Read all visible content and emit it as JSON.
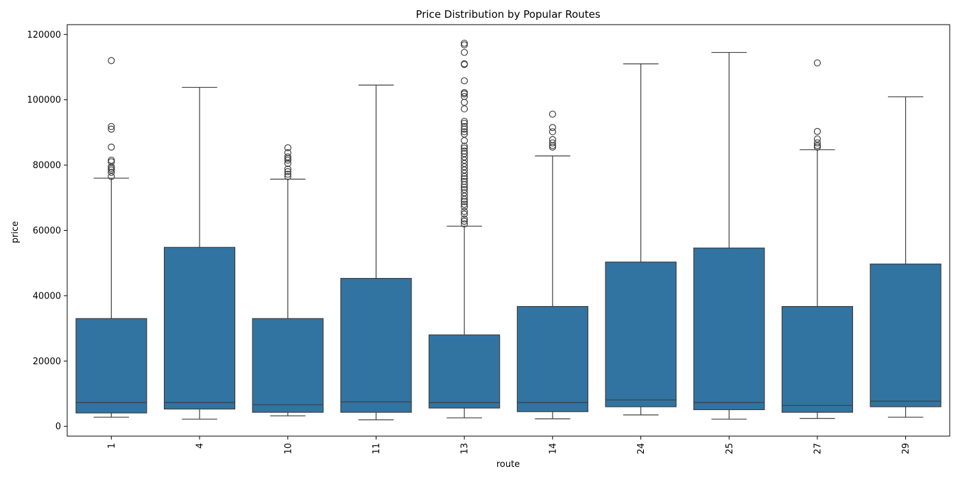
{
  "chart_data": {
    "type": "box",
    "title": "Price Distribution by Popular Routes",
    "xlabel": "route",
    "ylabel": "price",
    "ylim": [
      -3000,
      123000
    ],
    "yticks": [
      0,
      20000,
      40000,
      60000,
      80000,
      100000,
      120000
    ],
    "ytick_labels": [
      "0",
      "20000",
      "40000",
      "60000",
      "80000",
      "100000",
      "120000"
    ],
    "x_tick_rotation": "vertical",
    "grid": false,
    "legend": "none",
    "colors": {
      "box_fill": "#3274a1",
      "line": "#3d3d3d",
      "axis": "#000000"
    },
    "categories": [
      "1",
      "4",
      "10",
      "11",
      "13",
      "14",
      "24",
      "25",
      "27",
      "29"
    ],
    "boxes": [
      {
        "category": "1",
        "whisker_low": 2800,
        "q1": 4100,
        "median": 7300,
        "q3": 33000,
        "whisker_high": 76000,
        "outliers": [
          76500,
          77800,
          78500,
          79000,
          79500,
          81000,
          81500,
          85500,
          91000,
          91800,
          112000
        ]
      },
      {
        "category": "4",
        "whisker_low": 2200,
        "q1": 5300,
        "median": 7300,
        "q3": 54800,
        "whisker_high": 103800,
        "outliers": []
      },
      {
        "category": "10",
        "whisker_low": 3200,
        "q1": 4300,
        "median": 6600,
        "q3": 33000,
        "whisker_high": 75700,
        "outliers": [
          76500,
          77200,
          78000,
          78800,
          80500,
          81500,
          82000,
          82500,
          83800,
          85300
        ]
      },
      {
        "category": "11",
        "whisker_low": 2000,
        "q1": 4300,
        "median": 7500,
        "q3": 45300,
        "whisker_high": 104500,
        "outliers": []
      },
      {
        "category": "13",
        "whisker_low": 2600,
        "q1": 5600,
        "median": 7300,
        "q3": 28000,
        "whisker_high": 61300,
        "outliers": [
          62000,
          62800,
          63500,
          65000,
          65800,
          67200,
          68000,
          68800,
          69500,
          70500,
          71500,
          72500,
          73200,
          74000,
          75000,
          75800,
          76500,
          77500,
          78500,
          79500,
          80500,
          81500,
          82500,
          83500,
          84300,
          85200,
          85800,
          87500,
          89500,
          90200,
          91000,
          91800,
          92800,
          93400,
          97200,
          99200,
          101000,
          101800,
          102200,
          105800,
          110800,
          111000,
          114500,
          116800,
          117300
        ]
      },
      {
        "category": "14",
        "whisker_low": 2300,
        "q1": 4500,
        "median": 7300,
        "q3": 36700,
        "whisker_high": 82800,
        "outliers": [
          85500,
          86000,
          86800,
          87800,
          90200,
          91500,
          95600
        ]
      },
      {
        "category": "24",
        "whisker_low": 3500,
        "q1": 6000,
        "median": 8100,
        "q3": 50300,
        "whisker_high": 111000,
        "outliers": []
      },
      {
        "category": "25",
        "whisker_low": 2200,
        "q1": 5100,
        "median": 7300,
        "q3": 54600,
        "whisker_high": 114500,
        "outliers": []
      },
      {
        "category": "27",
        "whisker_low": 2400,
        "q1": 4300,
        "median": 6400,
        "q3": 36700,
        "whisker_high": 84700,
        "outliers": [
          85500,
          86000,
          86800,
          88000,
          90300,
          111300
        ]
      },
      {
        "category": "29",
        "whisker_low": 2800,
        "q1": 6000,
        "median": 7700,
        "q3": 49700,
        "whisker_high": 100900,
        "outliers": []
      }
    ]
  }
}
